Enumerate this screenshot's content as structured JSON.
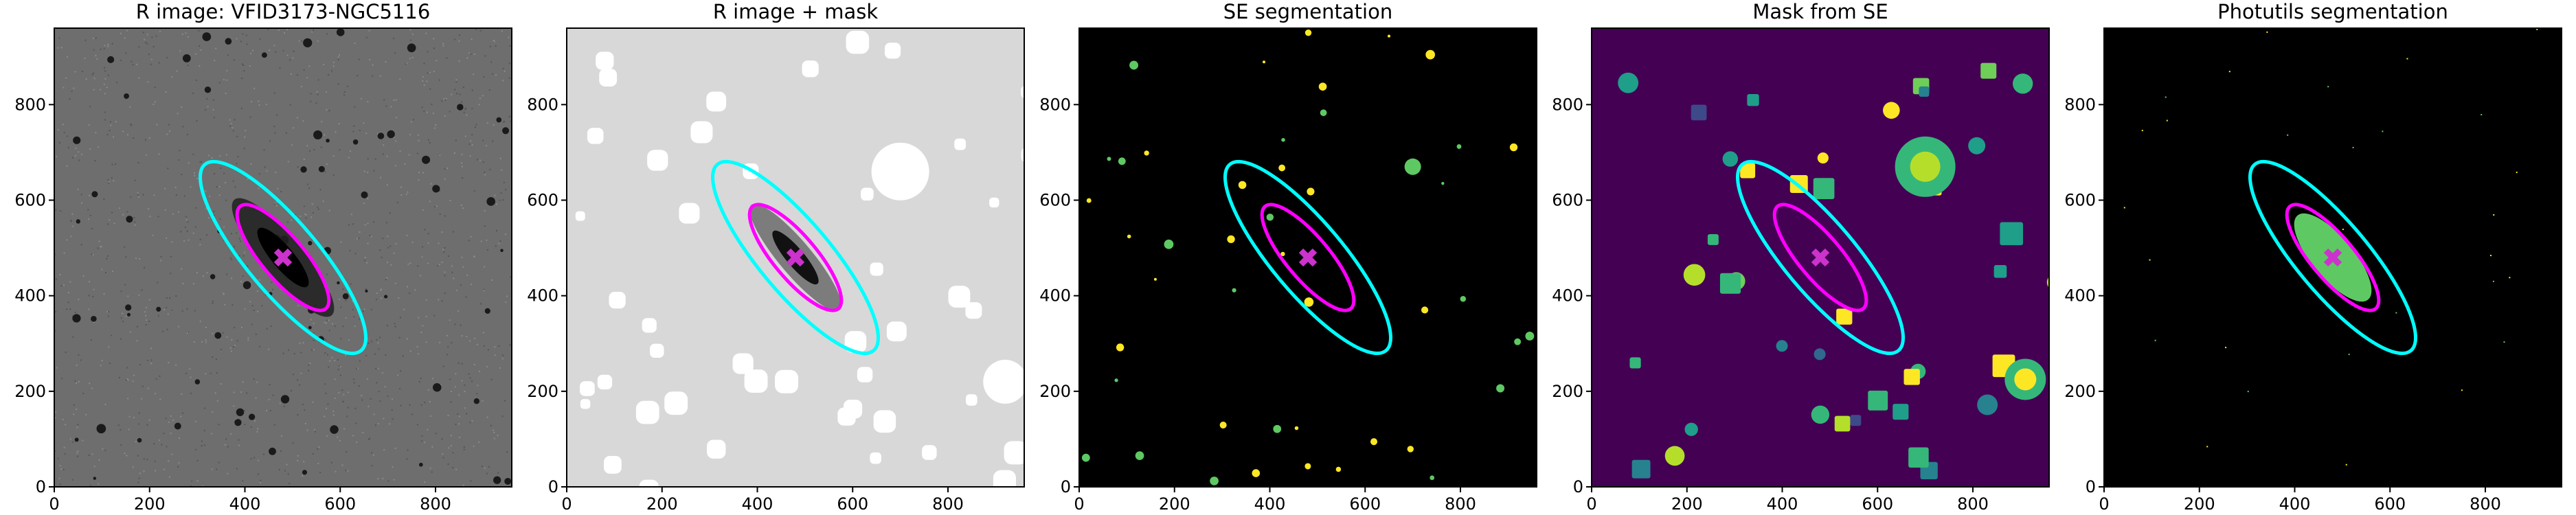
{
  "chart_data": [
    {
      "type": "image",
      "title": "R image: VFID3173-NGC5116",
      "background": "#6e6e6e",
      "xlim": [
        0,
        960
      ],
      "ylim": [
        0,
        960
      ],
      "xticks": [
        0,
        200,
        400,
        600,
        800
      ],
      "yticks": [
        0,
        200,
        400,
        600,
        800
      ],
      "ellipses": [
        {
          "center": [
            480,
            480
          ],
          "semi_axes": [
            255,
            75
          ],
          "angle": 130,
          "color": "#00ffff"
        },
        {
          "center": [
            480,
            480
          ],
          "semi_axes": [
            140,
            45
          ],
          "angle": 130,
          "color": "#ff00ff"
        }
      ],
      "marker": {
        "x": 480,
        "y": 480,
        "color": "#cc33cc"
      }
    },
    {
      "type": "image",
      "title": "R image + mask",
      "background": "#d8d8d8",
      "xlim": [
        0,
        960
      ],
      "ylim": [
        0,
        960
      ],
      "xticks": [
        0,
        200,
        400,
        600,
        800
      ],
      "yticks": [
        0,
        200,
        400,
        600,
        800
      ],
      "ellipses": [
        {
          "center": [
            480,
            480
          ],
          "semi_axes": [
            255,
            75
          ],
          "angle": 130,
          "color": "#00ffff"
        },
        {
          "center": [
            480,
            480
          ],
          "semi_axes": [
            140,
            45
          ],
          "angle": 130,
          "color": "#ff00ff"
        }
      ],
      "marker": {
        "x": 480,
        "y": 480,
        "color": "#cc33cc"
      }
    },
    {
      "type": "image",
      "title": "SE segmentation",
      "background": "#000000",
      "xlim": [
        0,
        960
      ],
      "ylim": [
        0,
        960
      ],
      "xticks": [
        0,
        200,
        400,
        600,
        800
      ],
      "yticks": [
        0,
        200,
        400,
        600,
        800
      ],
      "ellipses": [
        {
          "center": [
            480,
            480
          ],
          "semi_axes": [
            255,
            75
          ],
          "angle": 130,
          "color": "#00ffff"
        },
        {
          "center": [
            480,
            480
          ],
          "semi_axes": [
            140,
            45
          ],
          "angle": 130,
          "color": "#ff00ff"
        }
      ],
      "marker": {
        "x": 480,
        "y": 480,
        "color": "#cc33cc"
      }
    },
    {
      "type": "image",
      "title": "Mask from SE",
      "background": "#440154",
      "xlim": [
        0,
        960
      ],
      "ylim": [
        0,
        960
      ],
      "xticks": [
        0,
        200,
        400,
        600,
        800
      ],
      "yticks": [
        0,
        200,
        400,
        600,
        800
      ],
      "ellipses": [
        {
          "center": [
            480,
            480
          ],
          "semi_axes": [
            255,
            75
          ],
          "angle": 130,
          "color": "#00ffff"
        },
        {
          "center": [
            480,
            480
          ],
          "semi_axes": [
            140,
            45
          ],
          "angle": 130,
          "color": "#ff00ff"
        }
      ],
      "marker": {
        "x": 480,
        "y": 480,
        "color": "#cc33cc"
      }
    },
    {
      "type": "image",
      "title": "Photutils segmentation",
      "background": "#000000",
      "xlim": [
        0,
        960
      ],
      "ylim": [
        0,
        960
      ],
      "xticks": [
        0,
        200,
        400,
        600,
        800
      ],
      "yticks": [
        0,
        200,
        400,
        600,
        800
      ],
      "ellipses": [
        {
          "center": [
            480,
            480
          ],
          "semi_axes": [
            255,
            75
          ],
          "angle": 130,
          "color": "#00ffff"
        },
        {
          "center": [
            480,
            480
          ],
          "semi_axes": [
            140,
            45
          ],
          "angle": 130,
          "color": "#ff00ff"
        }
      ],
      "marker": {
        "x": 480,
        "y": 480,
        "color": "#cc33cc"
      }
    }
  ]
}
